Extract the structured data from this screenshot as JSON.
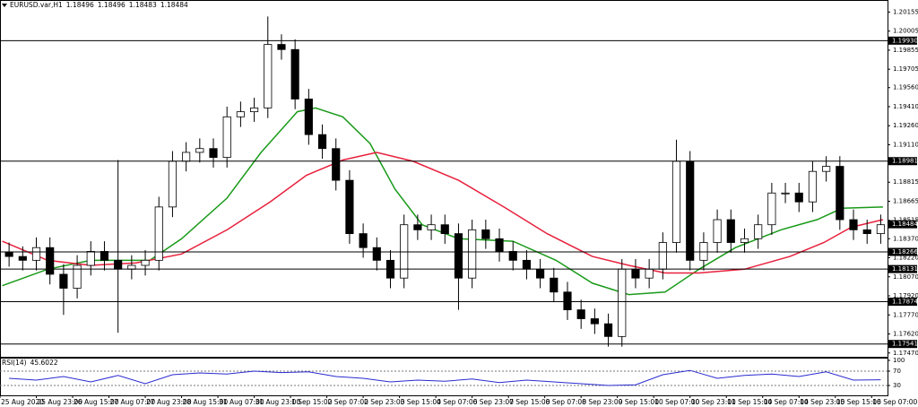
{
  "header": {
    "symbol": "EURUSD.var,H1",
    "ohlc": [
      1.18496,
      1.18496,
      1.18483,
      1.18484
    ]
  },
  "chart_data": [
    {
      "type": "candlestick",
      "x": [
        3,
        9,
        15,
        21,
        27,
        33,
        39,
        45,
        51,
        57,
        63,
        69,
        75,
        81,
        87,
        93,
        99,
        105,
        111,
        117,
        123,
        129,
        135,
        141,
        147,
        153,
        159,
        165,
        171,
        177,
        183,
        189,
        195,
        201,
        207,
        213,
        219,
        225,
        231,
        237,
        243,
        249,
        255,
        261,
        267,
        273,
        279,
        285,
        291,
        297,
        303,
        309,
        315,
        321,
        327,
        333,
        339,
        345,
        351,
        357,
        363,
        369,
        375,
        381,
        387
      ],
      "open": [
        1.1826,
        1.1823,
        1.182,
        1.183,
        1.1809,
        1.1798,
        1.1816,
        1.1827,
        1.182,
        1.1813,
        1.1816,
        1.182,
        1.1862,
        1.1898,
        1.1905,
        1.1908,
        1.1901,
        1.1933,
        1.1937,
        1.194,
        1.199,
        1.1986,
        1.1947,
        1.1919,
        1.1908,
        1.1883,
        1.1841,
        1.183,
        1.182,
        1.1806,
        1.1848,
        1.1844,
        1.1848,
        1.1841,
        1.1806,
        1.1844,
        1.1837,
        1.1827,
        1.182,
        1.1813,
        1.1806,
        1.1795,
        1.1781,
        1.1774,
        1.177,
        1.176,
        1.1813,
        1.1806,
        1.1813,
        1.1834,
        1.1898,
        1.182,
        1.1834,
        1.1852,
        1.1834,
        1.1837,
        1.1848,
        1.1873,
        1.1873,
        1.1866,
        1.189,
        1.1894,
        1.1852,
        1.1844,
        1.1841
      ],
      "high": [
        1.1834,
        1.1831,
        1.1838,
        1.1838,
        1.1817,
        1.1824,
        1.1835,
        1.1835,
        1.1899,
        1.1824,
        1.1828,
        1.187,
        1.1906,
        1.1913,
        1.1916,
        1.1916,
        1.1941,
        1.1945,
        1.1948,
        1.2012,
        1.1998,
        1.1994,
        1.1955,
        1.1927,
        1.1916,
        1.1891,
        1.1849,
        1.1838,
        1.1828,
        1.1856,
        1.1856,
        1.1856,
        1.1856,
        1.1849,
        1.1852,
        1.1852,
        1.1845,
        1.1835,
        1.1828,
        1.1821,
        1.1814,
        1.1803,
        1.1789,
        1.1782,
        1.1778,
        1.1821,
        1.1821,
        1.1821,
        1.1842,
        1.1915,
        1.1906,
        1.1842,
        1.186,
        1.186,
        1.1845,
        1.1856,
        1.1881,
        1.1881,
        1.1881,
        1.1898,
        1.1902,
        1.1902,
        1.186,
        1.1852,
        1.1856
      ],
      "low": [
        1.1815,
        1.1812,
        1.1812,
        1.1801,
        1.1777,
        1.179,
        1.1808,
        1.1812,
        1.1763,
        1.1805,
        1.1808,
        1.1812,
        1.1854,
        1.189,
        1.1897,
        1.1893,
        1.1893,
        1.1925,
        1.1929,
        1.1932,
        1.1978,
        1.1939,
        1.1911,
        1.19,
        1.1875,
        1.1833,
        1.1822,
        1.1812,
        1.1798,
        1.1798,
        1.1836,
        1.1836,
        1.1833,
        1.1781,
        1.1798,
        1.1829,
        1.1819,
        1.1812,
        1.1805,
        1.1798,
        1.1787,
        1.1773,
        1.1766,
        1.1762,
        1.1752,
        1.1752,
        1.1798,
        1.1798,
        1.1805,
        1.1826,
        1.1812,
        1.1812,
        1.1826,
        1.1826,
        1.1826,
        1.1829,
        1.184,
        1.1865,
        1.1858,
        1.1858,
        1.1882,
        1.1844,
        1.1836,
        1.1833,
        1.1833
      ],
      "close": [
        1.1823,
        1.182,
        1.183,
        1.1809,
        1.1798,
        1.1816,
        1.1827,
        1.182,
        1.1813,
        1.1816,
        1.182,
        1.1862,
        1.1898,
        1.1905,
        1.1908,
        1.1901,
        1.1933,
        1.1937,
        1.194,
        1.199,
        1.1986,
        1.1947,
        1.1919,
        1.1908,
        1.1883,
        1.1841,
        1.183,
        1.182,
        1.1806,
        1.1848,
        1.1844,
        1.1848,
        1.1841,
        1.1806,
        1.1844,
        1.1837,
        1.1827,
        1.182,
        1.1813,
        1.1806,
        1.1795,
        1.1781,
        1.1774,
        1.177,
        1.176,
        1.1813,
        1.1806,
        1.1813,
        1.1834,
        1.1898,
        1.182,
        1.1834,
        1.1852,
        1.1834,
        1.1837,
        1.1848,
        1.1873,
        1.1873,
        1.1866,
        1.189,
        1.1894,
        1.1852,
        1.1844,
        1.1841,
        1.1848
      ],
      "overlays": [
        {
          "color": "#1a9a1a",
          "x": [
            0,
            20,
            39,
            65,
            79,
            99,
            114,
            130,
            138,
            150,
            162,
            173,
            185,
            201,
            225,
            244,
            260,
            276,
            292,
            307,
            323,
            343,
            359,
            370,
            388
          ],
          "values": [
            1.18,
            1.1813,
            1.182,
            1.182,
            1.1837,
            1.1869,
            1.1905,
            1.1937,
            1.194,
            1.1933,
            1.1912,
            1.1876,
            1.1848,
            1.1837,
            1.1835,
            1.182,
            1.1802,
            1.1793,
            1.1795,
            1.1813,
            1.183,
            1.1844,
            1.1852,
            1.1861,
            1.1862
          ]
        },
        {
          "color": "#e8203c",
          "x": [
            0,
            20,
            39,
            59,
            79,
            99,
            118,
            134,
            150,
            165,
            181,
            201,
            221,
            240,
            260,
            276,
            292,
            307,
            327,
            347,
            362,
            374,
            388
          ],
          "values": [
            1.1835,
            1.182,
            1.1816,
            1.1818,
            1.1825,
            1.1844,
            1.1866,
            1.1887,
            1.1899,
            1.1905,
            1.1898,
            1.1883,
            1.1862,
            1.1841,
            1.1823,
            1.1816,
            1.181,
            1.181,
            1.1813,
            1.1823,
            1.1834,
            1.1846,
            1.1852
          ]
        }
      ],
      "xlim": [
        -1,
        390
      ],
      "ylim": [
        1.1744,
        1.2025
      ],
      "yticks": [
        1.20155,
        1.20005,
        1.19855,
        1.19705,
        {
          "value": 1.1956,
          "label": "1.19560"
        },
        {
          "value": 1.1941,
          "label": "1.19410"
        },
        {
          "value": 1.1926,
          "label": "1.19260"
        },
        {
          "value": 1.1911,
          "label": "1.19110"
        },
        1.18815,
        1.18665,
        1.18515,
        {
          "value": 1.1837,
          "label": "1.18370"
        },
        {
          "value": 1.1822,
          "label": "1.18220"
        },
        {
          "value": 1.1807,
          "label": "1.18070"
        },
        {
          "value": 1.1792,
          "label": "1.17920"
        },
        {
          "value": 1.1777,
          "label": "1.17770"
        },
        {
          "value": 1.1762,
          "label": "1.17620"
        },
        {
          "value": 1.1747,
          "label": "1.17470"
        }
      ],
      "levels": [
        {
          "value": 1.1993,
          "label": "1.19930"
        },
        1.18981,
        1.18266,
        1.18131,
        1.17874,
        1.17541
      ],
      "last_price": 1.18484,
      "xticks": [
        {
          "value": -1,
          "label": "25 Aug 2020"
        },
        {
          "value": 15,
          "label": "25 Aug 23:00"
        },
        {
          "value": 31,
          "label": "26 Aug 15:00"
        },
        {
          "value": 47,
          "label": "27 Aug 07:00"
        },
        {
          "value": 63,
          "label": "27 Aug 23:00"
        },
        {
          "value": 79,
          "label": "28 Aug 15:00"
        },
        {
          "value": 95,
          "label": "31 Aug 07:00"
        },
        {
          "value": 111,
          "label": "31 Aug 23:00"
        },
        {
          "value": 127,
          "label": "1 Sep 15:00"
        },
        {
          "value": 143,
          "label": "2 Sep 07:00"
        },
        {
          "value": 159,
          "label": "2 Sep 23:00"
        },
        {
          "value": 175,
          "label": "3 Sep 15:00"
        },
        {
          "value": 191,
          "label": "4 Sep 07:00"
        },
        {
          "value": 207,
          "label": "6 Sep 23:00"
        },
        {
          "value": 223,
          "label": "7 Sep 15:00"
        },
        {
          "value": 239,
          "label": "8 Sep 07:00"
        },
        {
          "value": 255,
          "label": "8 Sep 23:00"
        },
        {
          "value": 271,
          "label": "9 Sep 15:00"
        },
        {
          "value": 287,
          "label": "10 Sep 07:00"
        },
        {
          "value": 303,
          "label": "10 Sep 23:00"
        },
        {
          "value": 319,
          "label": "11 Sep 15:00"
        },
        {
          "value": 335,
          "label": "14 Sep 07:00"
        },
        {
          "value": 351,
          "label": "14 Sep 23:00"
        },
        {
          "value": 367,
          "label": "15 Sep 15:00"
        },
        {
          "value": 383,
          "label": "16 Sep 07:00"
        }
      ]
    },
    {
      "type": "line",
      "title": "RSI(14)",
      "last_value": 45.6022,
      "color": "#2a2ad0",
      "x": [
        3,
        15,
        27,
        39,
        51,
        63,
        75,
        87,
        99,
        111,
        123,
        135,
        147,
        159,
        171,
        183,
        195,
        207,
        219,
        231,
        243,
        255,
        267,
        279,
        291,
        303,
        315,
        327,
        339,
        351,
        363,
        375,
        387
      ],
      "values": [
        50,
        45,
        55,
        40,
        58,
        35,
        60,
        65,
        62,
        70,
        66,
        68,
        55,
        50,
        40,
        45,
        42,
        48,
        38,
        45,
        40,
        35,
        30,
        32,
        60,
        72,
        50,
        58,
        62,
        55,
        68,
        45,
        46
      ],
      "xlim": [
        -1,
        390
      ],
      "ylim": [
        0,
        100
      ],
      "yticks": [
        100,
        70,
        30
      ],
      "levels": [
        70,
        30
      ]
    }
  ]
}
